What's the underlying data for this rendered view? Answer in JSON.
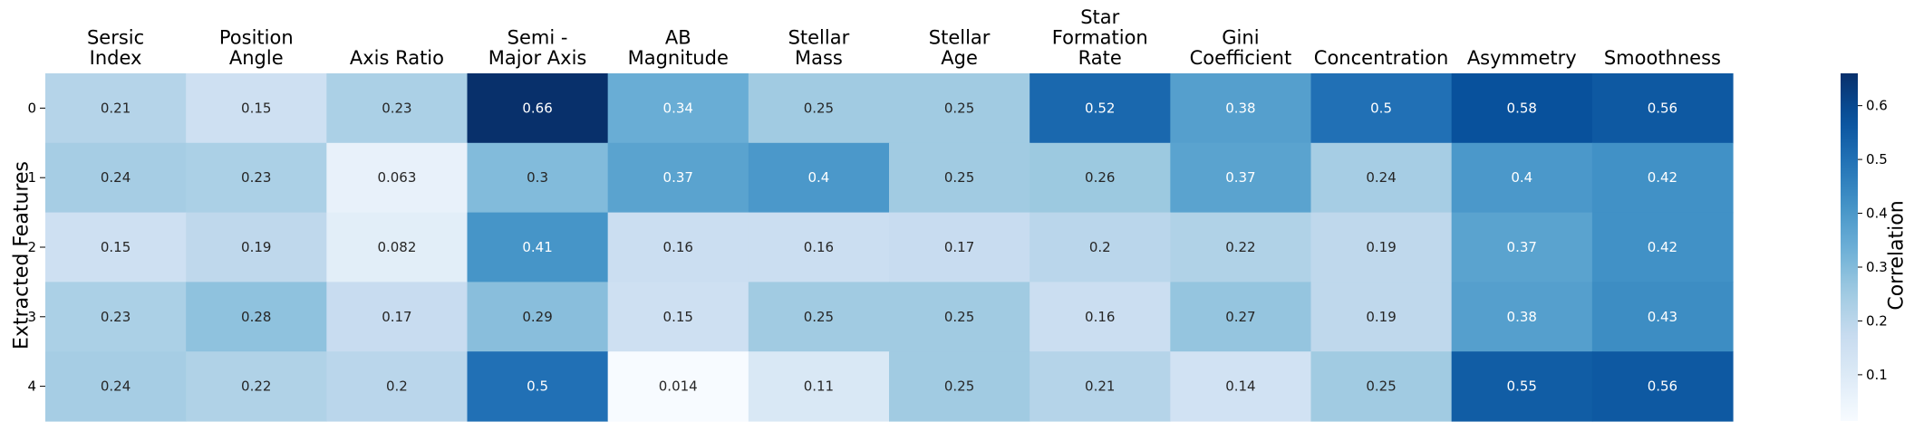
{
  "chart_data": {
    "type": "heatmap",
    "columns": [
      [
        "Sersic",
        "Index"
      ],
      [
        "Position",
        "Angle"
      ],
      [
        "Axis Ratio"
      ],
      [
        "Semi -",
        "Major Axis"
      ],
      [
        "AB",
        "Magnitude"
      ],
      [
        "Stellar",
        "Mass"
      ],
      [
        "Stellar",
        "Age"
      ],
      [
        "Star",
        "Formation",
        "Rate"
      ],
      [
        "Gini",
        "Coefficient"
      ],
      [
        "Concentration"
      ],
      [
        "Asymmetry"
      ],
      [
        "Smoothness"
      ]
    ],
    "rows": [
      "0",
      "1",
      "2",
      "3",
      "4"
    ],
    "ylabel": "Extracted Features",
    "values": [
      [
        0.21,
        0.15,
        0.23,
        0.66,
        0.34,
        0.25,
        0.25,
        0.52,
        0.38,
        0.5,
        0.58,
        0.56
      ],
      [
        0.24,
        0.23,
        0.063,
        0.3,
        0.37,
        0.4,
        0.25,
        0.26,
        0.37,
        0.24,
        0.4,
        0.42
      ],
      [
        0.15,
        0.19,
        0.082,
        0.41,
        0.16,
        0.16,
        0.17,
        0.2,
        0.22,
        0.19,
        0.37,
        0.42
      ],
      [
        0.23,
        0.28,
        0.17,
        0.29,
        0.15,
        0.25,
        0.25,
        0.16,
        0.27,
        0.19,
        0.38,
        0.43
      ],
      [
        0.24,
        0.22,
        0.2,
        0.5,
        0.014,
        0.11,
        0.25,
        0.21,
        0.14,
        0.25,
        0.55,
        0.56
      ]
    ],
    "colormap": "Blues",
    "vmin": 0.014,
    "vmax": 0.66,
    "colorbar": {
      "label": "Correlation",
      "ticks": [
        0.1,
        0.2,
        0.3,
        0.4,
        0.5,
        0.6
      ]
    },
    "legend_position": "right"
  }
}
